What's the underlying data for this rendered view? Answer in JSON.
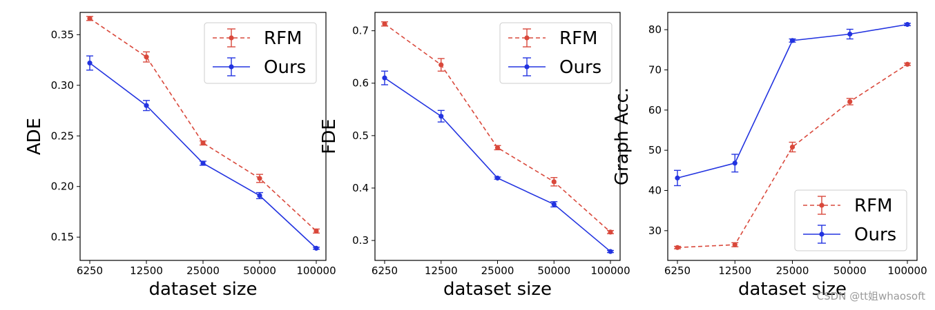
{
  "chart_data": [
    {
      "type": "line",
      "categories": [
        "6250",
        "12500",
        "25000",
        "50000",
        "100000"
      ],
      "xlabel": "dataset size",
      "ylabel": "ADE",
      "ylim": [
        0.127,
        0.372
      ],
      "yticks": [
        0.15,
        0.2,
        0.25,
        0.3,
        0.35
      ],
      "ytick_labels": [
        "0.15",
        "0.20",
        "0.25",
        "0.30",
        "0.35"
      ],
      "legend_position": "top-right",
      "series": [
        {
          "name": "RFM",
          "color": "#d9483b",
          "style": "dashed",
          "values": [
            0.366,
            0.328,
            0.243,
            0.208,
            0.156
          ],
          "errors": [
            0.002,
            0.005,
            0.002,
            0.004,
            0.002
          ]
        },
        {
          "name": "Ours",
          "color": "#2233e0",
          "style": "solid",
          "values": [
            0.322,
            0.28,
            0.223,
            0.191,
            0.139
          ],
          "errors": [
            0.007,
            0.005,
            0.002,
            0.003,
            0.001
          ]
        }
      ]
    },
    {
      "type": "line",
      "categories": [
        "6250",
        "12500",
        "25000",
        "50000",
        "100000"
      ],
      "xlabel": "dataset size",
      "ylabel": "FDE",
      "ylim": [
        0.262,
        0.735
      ],
      "yticks": [
        0.3,
        0.4,
        0.5,
        0.6,
        0.7
      ],
      "ytick_labels": [
        "0.3",
        "0.4",
        "0.5",
        "0.6",
        "0.7"
      ],
      "legend_position": "top-right",
      "series": [
        {
          "name": "RFM",
          "color": "#d9483b",
          "style": "dashed",
          "values": [
            0.713,
            0.635,
            0.477,
            0.412,
            0.316
          ],
          "errors": [
            0.004,
            0.012,
            0.004,
            0.008,
            0.003
          ]
        },
        {
          "name": "Ours",
          "color": "#2233e0",
          "style": "solid",
          "values": [
            0.61,
            0.537,
            0.419,
            0.369,
            0.279
          ],
          "errors": [
            0.013,
            0.011,
            0.002,
            0.005,
            0.002
          ]
        }
      ]
    },
    {
      "type": "line",
      "categories": [
        "6250",
        "12500",
        "25000",
        "50000",
        "100000"
      ],
      "xlabel": "dataset size",
      "ylabel": "Graph Acc.",
      "ylim": [
        22.6,
        84.3
      ],
      "yticks": [
        30,
        40,
        50,
        60,
        70,
        80
      ],
      "ytick_labels": [
        "30",
        "40",
        "50",
        "60",
        "70",
        "80"
      ],
      "legend_position": "bottom-right",
      "series": [
        {
          "name": "RFM",
          "color": "#d9483b",
          "style": "dashed",
          "values": [
            25.8,
            26.5,
            50.8,
            62.1,
            71.4
          ],
          "errors": [
            0.3,
            0.5,
            1.2,
            0.8,
            0.3
          ]
        },
        {
          "name": "Ours",
          "color": "#2233e0",
          "style": "solid",
          "values": [
            43.1,
            46.8,
            77.3,
            78.9,
            81.3
          ],
          "errors": [
            1.9,
            2.2,
            0.4,
            1.2,
            0.3
          ]
        }
      ]
    }
  ],
  "watermark": "CSDN @tt姐whaosoft"
}
